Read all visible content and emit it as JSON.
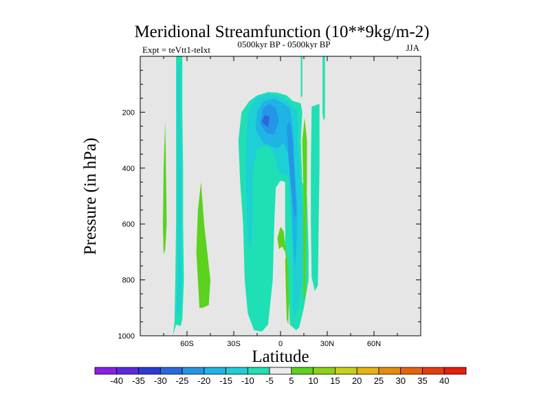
{
  "chart_data": {
    "type": "heatmap",
    "title": "Meridional Streamfunction (10**9kg/m-2)",
    "subtitle_center": "0500kyr BP - 0500kyr BP",
    "subtitle_left": "Expt = teVtt1-teIxt",
    "subtitle_right": "JJA",
    "xlabel": "Latitude",
    "ylabel": "Pressure (in hPa)",
    "xlim": [
      -90,
      90
    ],
    "ylim": [
      1000,
      0
    ],
    "x_ticks": [
      {
        "value": -60,
        "label": "60S"
      },
      {
        "value": -30,
        "label": "30S"
      },
      {
        "value": 0,
        "label": "0"
      },
      {
        "value": 30,
        "label": "30N"
      },
      {
        "value": 60,
        "label": "60N"
      }
    ],
    "y_ticks": [
      {
        "value": 200,
        "label": "200"
      },
      {
        "value": 400,
        "label": "400"
      },
      {
        "value": 600,
        "label": "600"
      },
      {
        "value": 800,
        "label": "800"
      },
      {
        "value": 1000,
        "label": "1000"
      }
    ],
    "background_color": "#e6e6e6",
    "colorbar": {
      "labels": [
        "-40",
        "-35",
        "-30",
        "-25",
        "-20",
        "-15",
        "-10",
        "-5",
        "5",
        "10",
        "15",
        "20",
        "25",
        "30",
        "35",
        "40"
      ],
      "colors": [
        "#8a1ee6",
        "#5a2ae0",
        "#2d3ad6",
        "#2a68e0",
        "#2596e6",
        "#1eb4e6",
        "#1ecfd6",
        "#1ee0b4",
        "#ebebeb",
        "#5ad21e",
        "#8cd214",
        "#c8d214",
        "#e6b40a",
        "#e68c0a",
        "#e6640a",
        "#e63c0a",
        "#e61e0a"
      ]
    },
    "regions": [
      {
        "value": -5,
        "color": "#1ee0b4",
        "points": [
          [
            -69,
            1000
          ],
          [
            -68,
            950
          ],
          [
            -67.5,
            800
          ],
          [
            -67,
            600
          ],
          [
            -67,
            400
          ],
          [
            -67,
            200
          ],
          [
            -67,
            0
          ],
          [
            -63,
            0
          ],
          [
            -63,
            200
          ],
          [
            -62.5,
            400
          ],
          [
            -62.5,
            600
          ],
          [
            -62,
            800
          ],
          [
            -63,
            940
          ],
          [
            -64,
            965
          ],
          [
            -67,
            960
          ]
        ]
      },
      {
        "value": -10,
        "color": "#1ecfd6",
        "points": [
          [
            -66.5,
            920
          ],
          [
            -66,
            800
          ],
          [
            -66,
            600
          ],
          [
            -66,
            400
          ],
          [
            -66,
            200
          ],
          [
            -66,
            30
          ],
          [
            -64.5,
            30
          ],
          [
            -64.5,
            200
          ],
          [
            -64,
            400
          ],
          [
            -64,
            600
          ],
          [
            -63.5,
            800
          ],
          [
            -64.5,
            920
          ]
        ]
      },
      {
        "value": 5,
        "color": "#5ad21e",
        "points": [
          [
            -75,
            710
          ],
          [
            -75.5,
            600
          ],
          [
            -75,
            400
          ],
          [
            -74,
            230
          ],
          [
            -73.5,
            400
          ],
          [
            -73,
            600
          ],
          [
            -74,
            690
          ]
        ]
      },
      {
        "value": 5,
        "color": "#5ad21e",
        "points": [
          [
            -52,
            900
          ],
          [
            -54,
            700
          ],
          [
            -53,
            550
          ],
          [
            -51,
            450
          ],
          [
            -49,
            600
          ],
          [
            -45,
            800
          ],
          [
            -46,
            890
          ],
          [
            -50,
            900
          ]
        ]
      },
      {
        "value": -5,
        "color": "#1ee0b4",
        "points": [
          [
            -26,
            440
          ],
          [
            -27,
            300
          ],
          [
            -25,
            200
          ],
          [
            -20,
            160
          ],
          [
            -15,
            140
          ],
          [
            -8,
            128
          ],
          [
            -2,
            130
          ],
          [
            4,
            140
          ],
          [
            8,
            160
          ],
          [
            13,
            168
          ],
          [
            14,
            200
          ],
          [
            13,
            300
          ],
          [
            14,
            450
          ],
          [
            17,
            500
          ],
          [
            18,
            700
          ],
          [
            18,
            800
          ],
          [
            15,
            900
          ],
          [
            12,
            970
          ],
          [
            10,
            980
          ],
          [
            6,
            960
          ],
          [
            5,
            800
          ],
          [
            3,
            700
          ],
          [
            3,
            500
          ],
          [
            3,
            450
          ],
          [
            0,
            445
          ],
          [
            -3,
            470
          ],
          [
            -4,
            600
          ],
          [
            -5,
            800
          ],
          [
            -8,
            960
          ],
          [
            -12,
            985
          ],
          [
            -17,
            980
          ],
          [
            -21,
            920
          ],
          [
            -23,
            800
          ],
          [
            -24,
            600
          ]
        ]
      },
      {
        "value": -10,
        "color": "#1ecfd6",
        "points": [
          [
            -22,
            450
          ],
          [
            -22,
            300
          ],
          [
            -21,
            200
          ],
          [
            -16,
            150
          ],
          [
            -8,
            135
          ],
          [
            -2,
            140
          ],
          [
            4,
            160
          ],
          [
            8,
            180
          ],
          [
            11,
            200
          ],
          [
            11,
            300
          ],
          [
            13,
            450
          ],
          [
            15,
            600
          ],
          [
            14,
            800
          ],
          [
            11,
            900
          ],
          [
            9,
            940
          ],
          [
            8,
            900
          ],
          [
            8,
            800
          ],
          [
            7,
            600
          ],
          [
            5,
            430
          ],
          [
            0,
            420
          ],
          [
            -2,
            400
          ],
          [
            -4,
            350
          ],
          [
            -8,
            320
          ],
          [
            -15,
            330
          ],
          [
            -18,
            420
          ],
          [
            -18,
            600
          ],
          [
            -19,
            700
          ],
          [
            -21,
            650
          ]
        ]
      },
      {
        "value": -15,
        "color": "#1eb4e6",
        "points": [
          [
            -16,
            260
          ],
          [
            -15,
            200
          ],
          [
            -11,
            160
          ],
          [
            -4,
            150
          ],
          [
            1,
            165
          ],
          [
            6,
            185
          ],
          [
            8,
            260
          ],
          [
            9,
            400
          ],
          [
            11,
            550
          ],
          [
            10,
            700
          ],
          [
            9,
            760
          ],
          [
            8,
            650
          ],
          [
            7,
            500
          ],
          [
            5,
            350
          ],
          [
            2,
            310
          ],
          [
            -2,
            330
          ],
          [
            -6,
            320
          ],
          [
            -11,
            310
          ]
        ]
      },
      {
        "value": -20,
        "color": "#2596e6",
        "points": [
          [
            -13,
            240
          ],
          [
            -11,
            185
          ],
          [
            -7,
            170
          ],
          [
            -3,
            185
          ],
          [
            -1,
            230
          ],
          [
            -4,
            280
          ],
          [
            -9,
            275
          ]
        ]
      },
      {
        "value": -20,
        "color": "#2596e6",
        "points": [
          [
            4,
            250
          ],
          [
            6,
            230
          ],
          [
            8,
            300
          ],
          [
            9,
            420
          ],
          [
            10,
            560
          ],
          [
            9,
            580
          ],
          [
            7,
            480
          ],
          [
            5,
            350
          ]
        ]
      },
      {
        "value": -25,
        "color": "#2a68e0",
        "points": [
          [
            -12,
            235
          ],
          [
            -10,
            210
          ],
          [
            -7,
            215
          ],
          [
            -8,
            255
          ]
        ]
      },
      {
        "value": 5,
        "color": "#5ad21e",
        "points": [
          [
            -2,
            650
          ],
          [
            0,
            610
          ],
          [
            2,
            625
          ],
          [
            4,
            720
          ],
          [
            3,
            700
          ],
          [
            1,
            680
          ],
          [
            -1,
            690
          ]
        ]
      },
      {
        "value": 5,
        "color": "#5ad21e",
        "points": [
          [
            3,
            730
          ],
          [
            4,
            700
          ],
          [
            5,
            760
          ],
          [
            5.5,
            870
          ],
          [
            5,
            960
          ],
          [
            4,
            940
          ],
          [
            3.5,
            850
          ]
        ]
      },
      {
        "value": 5,
        "color": "#5ad21e",
        "points": [
          [
            14.5,
            855
          ],
          [
            14.5,
            600
          ],
          [
            14.5,
            450
          ],
          [
            14,
            300
          ],
          [
            15.5,
            220
          ],
          [
            17,
            300
          ],
          [
            17,
            450
          ],
          [
            16.5,
            600
          ],
          [
            16,
            855
          ],
          [
            15,
            870
          ]
        ]
      },
      {
        "value": -5,
        "color": "#1ee0b4",
        "points": [
          [
            20,
            790
          ],
          [
            19.5,
            600
          ],
          [
            19.5,
            400
          ],
          [
            20,
            180
          ],
          [
            25,
            170
          ],
          [
            25,
            400
          ],
          [
            24.5,
            600
          ],
          [
            24,
            820
          ],
          [
            22,
            840
          ]
        ]
      },
      {
        "value": -5,
        "color": "#1ee0b4",
        "points": [
          [
            27,
            200
          ],
          [
            27,
            0
          ],
          [
            28.5,
            0
          ],
          [
            28.5,
            220
          ],
          [
            27.5,
            230
          ]
        ]
      },
      {
        "value": -5,
        "color": "#1ee0b4",
        "points": [
          [
            13,
            150
          ],
          [
            13,
            0
          ],
          [
            14,
            0
          ],
          [
            14,
            140
          ]
        ]
      },
      {
        "value": -5,
        "color": "#1ee0b4",
        "points": [
          [
            10,
            930
          ],
          [
            10,
            880
          ],
          [
            10.5,
            880
          ],
          [
            10.5,
            930
          ]
        ]
      }
    ]
  }
}
